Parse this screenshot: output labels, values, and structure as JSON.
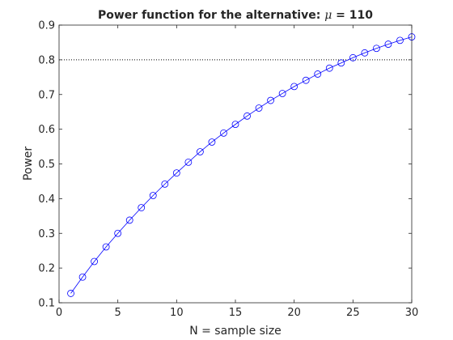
{
  "chart_data": {
    "type": "line",
    "title_prefix": "Power function for the alternative: ",
    "title_symbol": "μ",
    "title_suffix": " = 110",
    "xlabel": "N = sample size",
    "ylabel": "Power",
    "xlim": [
      0,
      30
    ],
    "ylim": [
      0.1,
      0.9
    ],
    "xticks": [
      0,
      5,
      10,
      15,
      20,
      25,
      30
    ],
    "yticks": [
      0.1,
      0.2,
      0.3,
      0.4,
      0.5,
      0.6,
      0.7,
      0.8,
      0.9
    ],
    "grid": false,
    "legend": false,
    "reference_line": {
      "y": 0.8,
      "style": "dotted",
      "color": "#000000"
    },
    "series": [
      {
        "color": "#0000ff",
        "marker": "circle",
        "x": [
          1,
          2,
          3,
          4,
          5,
          6,
          7,
          8,
          9,
          10,
          11,
          12,
          13,
          14,
          15,
          16,
          17,
          18,
          19,
          20,
          21,
          22,
          23,
          24,
          25,
          26,
          27,
          28,
          29,
          30
        ],
        "y": [
          0.127,
          0.174,
          0.219,
          0.261,
          0.3,
          0.338,
          0.374,
          0.409,
          0.442,
          0.474,
          0.505,
          0.535,
          0.563,
          0.589,
          0.614,
          0.638,
          0.661,
          0.683,
          0.703,
          0.723,
          0.741,
          0.759,
          0.776,
          0.791,
          0.806,
          0.82,
          0.833,
          0.845,
          0.856,
          0.866
        ]
      }
    ]
  }
}
